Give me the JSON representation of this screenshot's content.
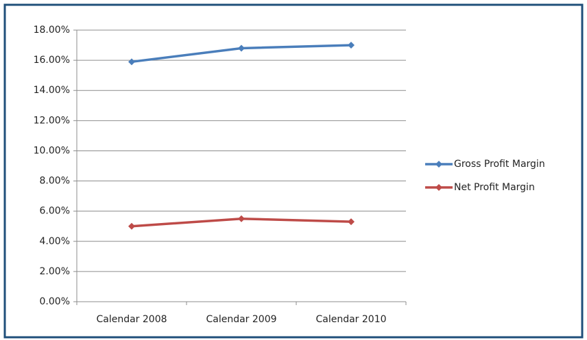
{
  "chart_data": {
    "type": "line",
    "categories": [
      "Calendar 2008",
      "Calendar 2009",
      "Calendar 2010"
    ],
    "series": [
      {
        "name": "Gross Profit Margin",
        "color": "#4a7ebb",
        "values": [
          15.9,
          16.8,
          17.0
        ]
      },
      {
        "name": "Net Profit Margin",
        "color": "#be4b48",
        "values": [
          5.0,
          5.5,
          5.3
        ]
      }
    ],
    "ylim": [
      0,
      18
    ],
    "yticks": [
      {
        "value": 0,
        "label": "0.00%"
      },
      {
        "value": 2,
        "label": "2.00%"
      },
      {
        "value": 4,
        "label": "4.00%"
      },
      {
        "value": 6,
        "label": "6.00%"
      },
      {
        "value": 8,
        "label": "8.00%"
      },
      {
        "value": 10,
        "label": "10.00%"
      },
      {
        "value": 12,
        "label": "12.00%"
      },
      {
        "value": 14,
        "label": "14.00%"
      },
      {
        "value": 16,
        "label": "16.00%"
      },
      {
        "value": 18,
        "label": "18.00%"
      }
    ],
    "grid": true,
    "legend": "right"
  }
}
